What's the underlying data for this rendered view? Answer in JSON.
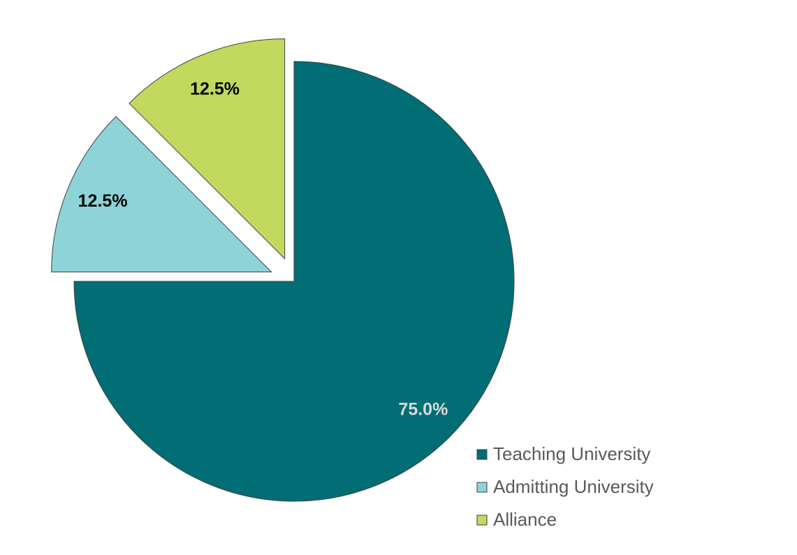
{
  "chart_data": {
    "type": "pie",
    "categories": [
      "Teaching University",
      "Admitting University",
      "Alliance"
    ],
    "values": [
      75,
      12.5,
      12.5
    ],
    "value_labels": [
      "75.0%",
      "12.5%",
      "12.5%"
    ],
    "colors": [
      "#006e74",
      "#8dd3d8",
      "#c2d95e"
    ],
    "label_colors": [
      "#d9d9d9",
      "#000000",
      "#000000"
    ],
    "legend": "bottom-right"
  }
}
